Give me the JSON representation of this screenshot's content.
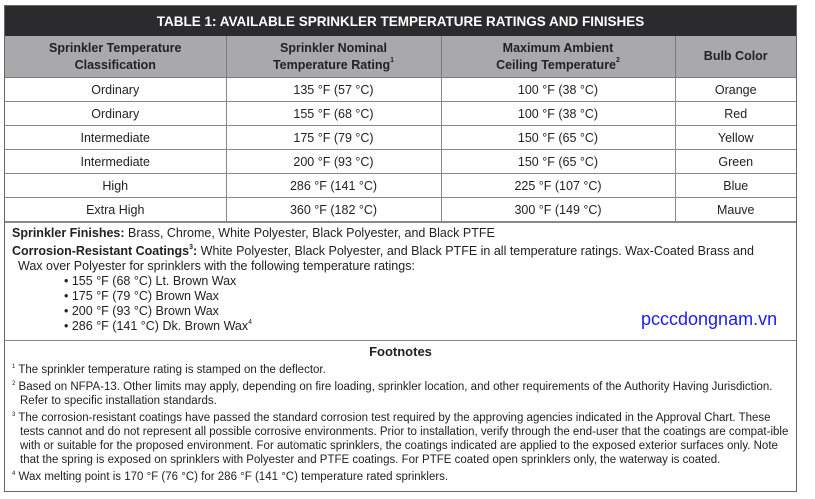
{
  "title": "TABLE 1: AVAILABLE SPRINKLER TEMPERATURE RATINGS AND FINISHES",
  "headers": [
    {
      "line1": "Sprinkler Temperature",
      "line2": "Classification",
      "sup": ""
    },
    {
      "line1": "Sprinkler Nominal",
      "line2": "Temperature Rating",
      "sup": "1"
    },
    {
      "line1": "Maximum Ambient",
      "line2": "Ceiling Temperature",
      "sup": "2"
    },
    {
      "line1": "Bulb Color",
      "line2": "",
      "sup": ""
    }
  ],
  "rows": [
    [
      "Ordinary",
      "135 °F (57 °C)",
      "100 °F (38 °C)",
      "Orange"
    ],
    [
      "Ordinary",
      "155 °F (68 °C)",
      "100 °F (38 °C)",
      "Red"
    ],
    [
      "Intermediate",
      "175 °F (79 °C)",
      "150 °F (65 °C)",
      "Yellow"
    ],
    [
      "Intermediate",
      "200 °F (93 °C)",
      "150 °F (65 °C)",
      "Green"
    ],
    [
      "High",
      "286 °F (141 °C)",
      "225 °F (107 °C)",
      "Blue"
    ],
    [
      "Extra High",
      "360 °F (182 °C)",
      "300 °F (149 °C)",
      "Mauve"
    ]
  ],
  "finishes": {
    "label": "Sprinkler Finishes:",
    "text": " Brass, Chrome, White Polyester, Black Polyester, and Black PTFE",
    "coat_label": "Corrosion-Resistant Coatings",
    "coat_sup": "3",
    "coat_colon": ":",
    "coat_text1": " White Polyester, Black Polyester, and Black PTFE in all temperature ratings. Wax-Coated Brass and",
    "coat_text2": "Wax over Polyester for sprinklers with the following temperature ratings:",
    "bullets": [
      "155 °F (68 °C) Lt. Brown Wax",
      "175 °F (79 °C) Brown Wax",
      "200 °F (93 °C) Brown Wax",
      "286 °F (141 °C) Dk. Brown Wax"
    ],
    "last_sup": "4"
  },
  "watermark": "pcccdongnam.vn",
  "footnotes": {
    "heading": "Footnotes",
    "items": [
      {
        "n": "1",
        "text": "The sprinkler temperature rating is stamped on the deflector."
      },
      {
        "n": "2",
        "text": "Based on NFPA-13. Other limits may apply, depending on fire loading, sprinkler location, and other requirements of the Authority Having Jurisdiction. Refer to specific installation standards."
      },
      {
        "n": "3",
        "text": "The corrosion-resistant coatings have passed the standard corrosion test required by the approving agencies indicated in the Approval Chart. These tests cannot and do not represent all possible corrosive environments. Prior to installation, verify through the end-user that the coatings are compat-ible with or suitable for the proposed environment. For automatic sprinklers, the coatings indicated are applied to the exposed exterior surfaces only. Note that the spring is exposed on sprinklers with Polyester and PTFE coatings. For PTFE coated open sprinklers only, the waterway is coated."
      },
      {
        "n": "4",
        "text": "Wax melting point is 170 °F (76 °C) for 286 °F (141 °C) temperature rated sprinklers."
      }
    ]
  }
}
